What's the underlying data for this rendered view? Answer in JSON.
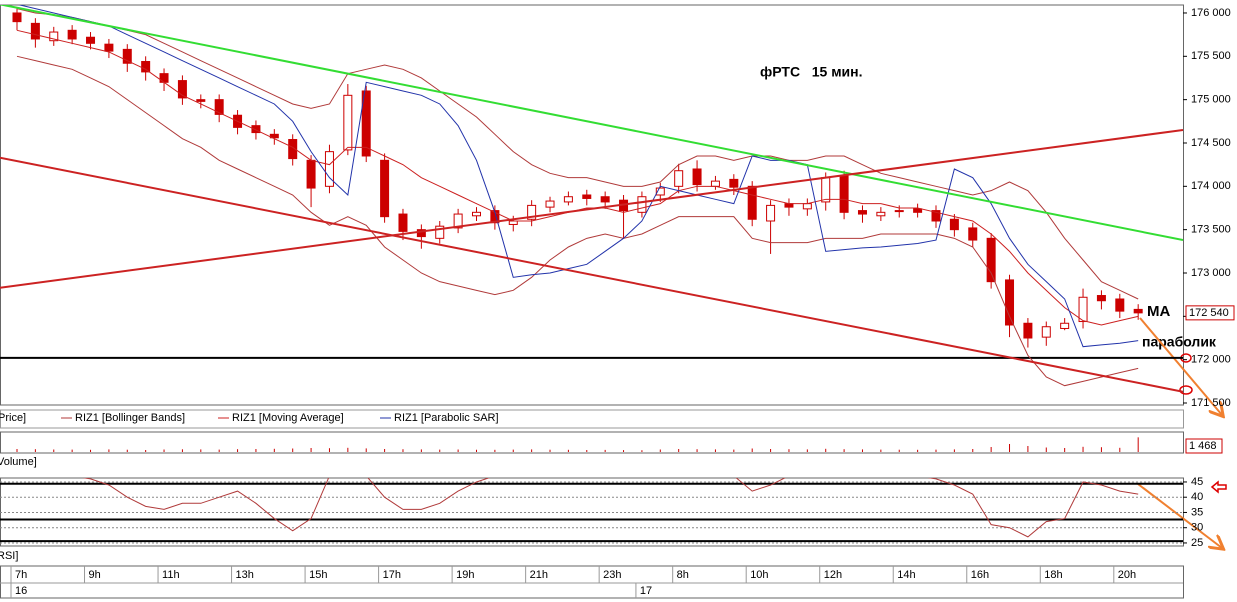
{
  "chart_data": [
    {
      "type": "candlestick",
      "title": "фРТС   15 мин.",
      "annotations": [
        "МА",
        "параболик"
      ],
      "categories": [
        "7h",
        null,
        null,
        null,
        "9h",
        null,
        null,
        null,
        "11h",
        null,
        null,
        null,
        "13h",
        null,
        null,
        null,
        "15h",
        null,
        null,
        null,
        "17h",
        null,
        null,
        null,
        "19h",
        null,
        null,
        null,
        "21h",
        null,
        null,
        null,
        "23h",
        null,
        null,
        null,
        "8h",
        null,
        null,
        null,
        "10h",
        null,
        null,
        null,
        "12h",
        null,
        null,
        null,
        "14h",
        null,
        null,
        null,
        "16h",
        null,
        null,
        null,
        "18h",
        null,
        null,
        null,
        "20h",
        null
      ],
      "day_categories": [
        "16",
        null,
        null,
        null,
        null,
        null,
        null,
        null,
        null,
        null,
        null,
        null,
        null,
        null,
        null,
        null,
        null,
        null,
        null,
        null,
        null,
        null,
        null,
        null,
        null,
        null,
        null,
        null,
        null,
        null,
        null,
        null,
        null,
        null,
        "17",
        null,
        null,
        null,
        null,
        null,
        null,
        null,
        null,
        null,
        null,
        null,
        null,
        null,
        null,
        null,
        null,
        null,
        null,
        null,
        null,
        null,
        null,
        null,
        null,
        null,
        null,
        null
      ],
      "ylim": [
        171477,
        176092
      ],
      "yticks": [
        {
          "value": 176000,
          "label": "176 000"
        },
        {
          "value": 175500,
          "label": "175 500"
        },
        {
          "value": 175000,
          "label": "175 000"
        },
        {
          "value": 174500,
          "label": "174 500"
        },
        {
          "value": 174000,
          "label": "174 000"
        },
        {
          "value": 173500,
          "label": "173 500"
        },
        {
          "value": 173000,
          "label": "173 000"
        },
        {
          "value": 172500,
          "label": "172 500"
        },
        {
          "value": 172000,
          "label": "172 000"
        },
        {
          "value": 171500,
          "label": "171 500"
        }
      ],
      "series": [
        {
          "name": "Price]",
          "color": "#cc0000",
          "last_value_label": "172 540",
          "open": [
            176000,
            175880,
            175680,
            175800,
            175720,
            175640,
            175580,
            175440,
            175300,
            175220,
            175000,
            175000,
            174820,
            174700,
            174600,
            174540,
            174300,
            174000,
            174420,
            175100,
            174300,
            173680,
            173500,
            173400,
            173520,
            173660,
            173720,
            173560,
            173620,
            173760,
            173820,
            173900,
            173880,
            173840,
            173700,
            173900,
            174000,
            174200,
            174000,
            174080,
            174000,
            173600,
            173800,
            173740,
            173820,
            174120,
            173720,
            173660,
            173720,
            173740,
            173720,
            173620,
            173520,
            173400,
            172920,
            172420,
            172260,
            172360,
            172440,
            172740,
            172700,
            172580
          ],
          "high": [
            176060,
            175940,
            175840,
            175860,
            175780,
            175700,
            175640,
            175500,
            175360,
            175280,
            175060,
            175060,
            174880,
            174760,
            174660,
            174600,
            174360,
            174480,
            175180,
            175160,
            174380,
            173740,
            173560,
            173600,
            173740,
            173760,
            173780,
            173660,
            173840,
            173880,
            173940,
            173960,
            173940,
            173900,
            173940,
            174040,
            174260,
            174300,
            174120,
            174140,
            174060,
            173840,
            173860,
            173860,
            174160,
            174180,
            173780,
            173760,
            173780,
            173800,
            173780,
            173680,
            173580,
            173460,
            172980,
            172480,
            172440,
            172480,
            172820,
            172800,
            172760,
            172640
          ],
          "low": [
            175800,
            175600,
            175620,
            175640,
            175580,
            175480,
            175320,
            175220,
            175100,
            174940,
            174900,
            174740,
            174600,
            174540,
            174480,
            174240,
            173760,
            173920,
            174360,
            174280,
            173580,
            173380,
            173280,
            173340,
            173460,
            173600,
            173500,
            173480,
            173540,
            173700,
            173780,
            173780,
            173740,
            173400,
            173640,
            173820,
            173920,
            173940,
            173960,
            173900,
            173540,
            173220,
            173660,
            173660,
            173720,
            173620,
            173580,
            173600,
            173640,
            173640,
            173520,
            173420,
            173300,
            172820,
            172260,
            172140,
            172160,
            172340,
            172360,
            172580,
            172480,
            172460
          ],
          "close": [
            175900,
            175700,
            175780,
            175700,
            175650,
            175560,
            175420,
            175320,
            175200,
            175020,
            174980,
            174830,
            174680,
            174620,
            174560,
            174320,
            173980,
            174400,
            175050,
            174350,
            173650,
            173480,
            173420,
            173540,
            173680,
            173700,
            173580,
            173600,
            173780,
            173830,
            173880,
            173860,
            173820,
            173720,
            173880,
            173980,
            174180,
            174020,
            174060,
            173990,
            173620,
            173780,
            173760,
            173800,
            174100,
            173700,
            173680,
            173700,
            173720,
            173700,
            173600,
            173500,
            173380,
            172900,
            172400,
            172250,
            172380,
            172420,
            172720,
            172680,
            172560,
            172540
          ]
        },
        {
          "name": "RIZ1 [Bollinger Bands]",
          "color": "#b03a3a",
          "upper": [
            176050,
            176000,
            175980,
            175950,
            175900,
            175850,
            175800,
            175750,
            175650,
            175550,
            175450,
            175350,
            175250,
            175150,
            175050,
            174950,
            174900,
            174950,
            175300,
            175350,
            175400,
            175350,
            175250,
            175100,
            174950,
            174800,
            174600,
            174400,
            174250,
            174150,
            174100,
            174100,
            174050,
            174000,
            174000,
            174050,
            174250,
            174350,
            174350,
            174300,
            174350,
            174350,
            174300,
            174300,
            174350,
            174350,
            174250,
            174150,
            174100,
            174050,
            174000,
            173950,
            173900,
            173950,
            174050,
            173950,
            173700,
            173400,
            173150,
            172900,
            172800,
            172700
          ],
          "lower": [
            175500,
            175450,
            175400,
            175350,
            175250,
            175150,
            175000,
            174850,
            174700,
            174550,
            174450,
            174300,
            174200,
            174100,
            174000,
            173900,
            173700,
            173550,
            173650,
            173550,
            173300,
            173150,
            173000,
            172900,
            172850,
            172800,
            172750,
            172800,
            172950,
            173150,
            173300,
            173400,
            173450,
            173400,
            173450,
            173550,
            173650,
            173650,
            173650,
            173650,
            173400,
            173350,
            173350,
            173350,
            173400,
            173400,
            173400,
            173450,
            173450,
            173450,
            173450,
            173400,
            173300,
            173000,
            172500,
            172050,
            171800,
            171700,
            171750,
            171800,
            171850,
            171900
          ]
        },
        {
          "name": "RIZ1 [Moving Average]",
          "color": "#cc2020",
          "values": [
            175800,
            175750,
            175700,
            175650,
            175600,
            175550,
            175450,
            175350,
            175200,
            175050,
            174950,
            174850,
            174750,
            174650,
            174550,
            174450,
            174300,
            174250,
            174450,
            174450,
            174350,
            174250,
            174100,
            174000,
            173900,
            173800,
            173700,
            173600,
            173600,
            173650,
            173700,
            173750,
            173750,
            173700,
            173750,
            173800,
            173950,
            174000,
            174000,
            173950,
            173900,
            173850,
            173800,
            173800,
            173850,
            173850,
            173800,
            173800,
            173750,
            173750,
            173700,
            173650,
            173600,
            173450,
            173250,
            173000,
            172800,
            172600,
            172450,
            172400,
            172450,
            172500
          ]
        },
        {
          "name": "RIZ1 [Parabolic SAR]",
          "color": "#2233aa",
          "values": [
            176100,
            176050,
            176000,
            175950,
            175900,
            175850,
            175750,
            175650,
            175550,
            175450,
            175350,
            175250,
            175150,
            175050,
            174950,
            174750,
            174400,
            174100,
            173900,
            175200,
            175150,
            175100,
            175050,
            174950,
            174700,
            174300,
            173700,
            172950,
            172980,
            173000,
            173050,
            173100,
            173250,
            173400,
            173600,
            174000,
            173950,
            173900,
            173850,
            173800,
            174350,
            174300,
            174300,
            174250,
            173250,
            173270,
            173290,
            173300,
            173320,
            173340,
            173380,
            174200,
            174100,
            173800,
            173400,
            173100,
            172900,
            172700,
            172150,
            172170,
            172190,
            172220
          ]
        }
      ],
      "trendlines": [
        {
          "color": "#33dd33",
          "values": [
            176100,
            173380
          ]
        },
        {
          "color": "#cc2222",
          "values": [
            172830,
            174650
          ]
        },
        {
          "color": "#cc2222",
          "values": [
            174330,
            171630
          ]
        }
      ],
      "hlines": [
        172020
      ]
    },
    {
      "type": "bar",
      "title": "Volume]",
      "ylim": [
        0,
        2000
      ],
      "series": [
        {
          "name": "RIZ1",
          "color": "#cc0000",
          "last_value_label": "1 468",
          "values": [
            300,
            280,
            250,
            240,
            220,
            260,
            230,
            200,
            250,
            270,
            260,
            240,
            280,
            300,
            320,
            350,
            400,
            380,
            420,
            360,
            300,
            280,
            260,
            240,
            250,
            230,
            220,
            240,
            260,
            230,
            220,
            200,
            210,
            190,
            180,
            250,
            300,
            280,
            260,
            240,
            350,
            300,
            280,
            260,
            320,
            280,
            260,
            240,
            230,
            220,
            240,
            260,
            300,
            500,
            800,
            600,
            450,
            400,
            520,
            480,
            420,
            1468
          ]
        }
      ]
    },
    {
      "type": "line",
      "title": "RSI]",
      "ylim": [
        24,
        46.3
      ],
      "yticks": [
        45,
        40,
        35,
        30,
        25
      ],
      "hlines": [
        44.4,
        32.7,
        25.6
      ],
      "series": [
        {
          "name": "RSI",
          "color": "#b03a3a",
          "values": [
            48,
            48,
            47,
            47,
            46,
            44,
            40,
            37,
            36,
            38,
            38,
            40,
            42,
            38,
            33,
            29,
            33,
            47,
            48,
            47,
            40,
            36,
            36,
            38,
            42,
            45,
            47,
            47,
            48,
            48,
            48,
            47,
            47,
            48,
            47,
            48,
            48,
            48,
            48,
            47,
            42,
            44,
            47,
            48,
            48,
            47,
            48,
            48,
            48,
            47,
            46,
            44,
            41,
            31,
            30,
            27,
            32,
            33,
            45,
            44,
            42,
            41
          ]
        }
      ]
    }
  ]
}
